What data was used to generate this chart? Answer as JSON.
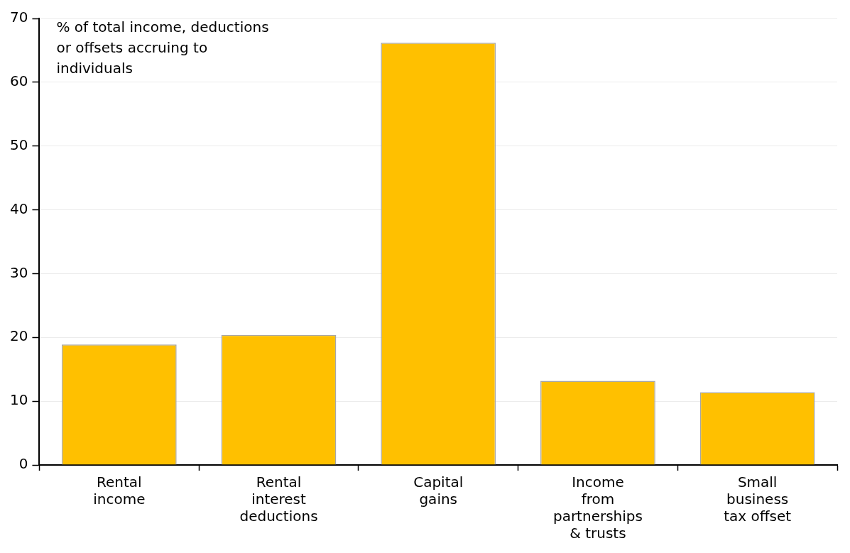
{
  "chart_data": {
    "type": "bar",
    "categories": [
      "Rental income",
      "Rental interest deductions",
      "Capital gains",
      "Income from partnerships & trusts",
      "Small business tax offset"
    ],
    "values": [
      18.9,
      20.4,
      66.2,
      13.2,
      11.4
    ],
    "color": "#ffc000",
    "ylim": [
      0,
      70
    ],
    "yticks": [
      0,
      10,
      20,
      30,
      40,
      50,
      60,
      70
    ],
    "grid": "y",
    "legend": false,
    "annotations": [
      "% of total income, deductions or offsets accruing to individuals"
    ]
  }
}
